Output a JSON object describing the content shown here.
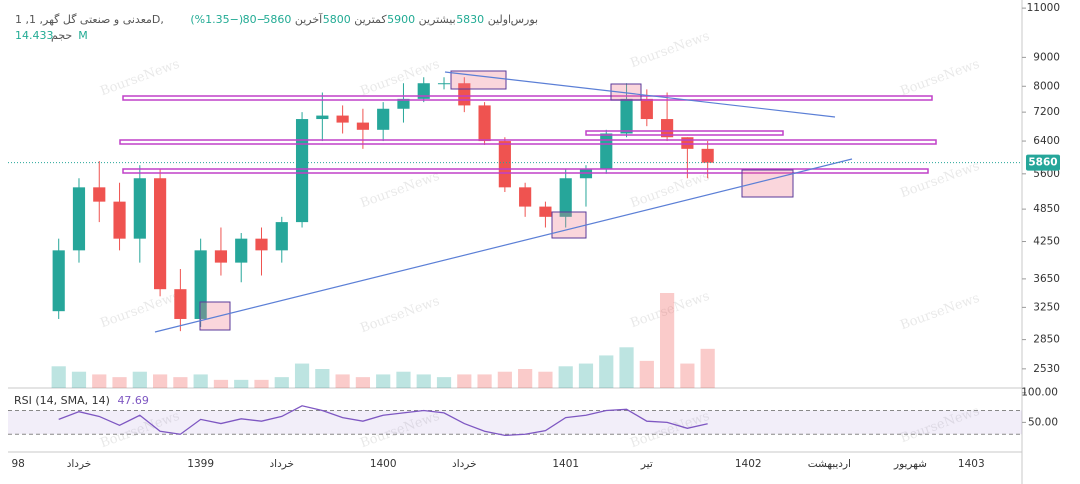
{
  "chart_data": {
    "type": "candlestick",
    "watermark": "BourseNews",
    "legend": {
      "name": "1 ,معدنی و صنعتی گل گهر, 1D, بورس",
      "open_label": "اولین",
      "open": 5830,
      "high_label": "بیشترین",
      "high": 5900,
      "low_label": "کمترین",
      "low": 5800,
      "close_label": "آخرین",
      "close": 5860,
      "change": {
        "value": -80,
        "label": "−80"
      },
      "change_pct": {
        "value": -1.35,
        "label": "(−1.35%)"
      },
      "volume_label": "حجم",
      "volume": {
        "value": 14.433,
        "label": "14.433M"
      }
    },
    "categories": [
      "98",
      null,
      null,
      "خرداد",
      null,
      null,
      null,
      null,
      null,
      "1399",
      null,
      null,
      null,
      "خرداد",
      null,
      null,
      null,
      null,
      "1400",
      null,
      null,
      null,
      "خرداد",
      null,
      null,
      null,
      null,
      "1401",
      null,
      null,
      null,
      "تیر",
      null,
      null,
      null,
      null,
      "1402",
      null,
      null,
      null,
      "اردیبهشت",
      null,
      null,
      null,
      "شهریور",
      null,
      null,
      "1403",
      null,
      null
    ],
    "open": [
      null,
      null,
      3200,
      4100,
      5300,
      5000,
      4300,
      5500,
      3500,
      3100,
      4100,
      3900,
      4300,
      4100,
      4600,
      7000,
      7100,
      6900,
      6700,
      7300,
      7600,
      8100,
      8100,
      7400,
      6400,
      5300,
      4900,
      4700,
      5500,
      5700,
      6600,
      7600,
      7000,
      6500,
      6200,
      null,
      null,
      null,
      null,
      null,
      null,
      null,
      null,
      null,
      null,
      null,
      null,
      null,
      null,
      null
    ],
    "high": [
      null,
      null,
      4300,
      5500,
      5900,
      5400,
      5800,
      5700,
      3800,
      4300,
      4500,
      4400,
      4500,
      4700,
      7200,
      7800,
      7400,
      7300,
      7500,
      8100,
      8300,
      8300,
      8300,
      7500,
      6500,
      5400,
      5000,
      5700,
      5800,
      6700,
      8100,
      7900,
      7800,
      6500,
      6400,
      null,
      null,
      null,
      null,
      null,
      null,
      null,
      null,
      null,
      null,
      null,
      null,
      null,
      null,
      null
    ],
    "low": [
      null,
      null,
      3100,
      3900,
      4600,
      4100,
      3900,
      3400,
      2950,
      3000,
      3700,
      3600,
      3700,
      3900,
      4500,
      6400,
      6600,
      6200,
      6400,
      6900,
      7500,
      7900,
      7200,
      6300,
      5200,
      4700,
      4500,
      4500,
      4900,
      5600,
      6500,
      6800,
      6400,
      5500,
      5500,
      null,
      null,
      null,
      null,
      null,
      null,
      null,
      null,
      null,
      null,
      null,
      null,
      null,
      null,
      null
    ],
    "close": [
      null,
      null,
      4100,
      5300,
      5000,
      4300,
      5500,
      3500,
      3100,
      4100,
      3900,
      4300,
      4100,
      4600,
      7000,
      7100,
      6900,
      6700,
      7300,
      7600,
      8100,
      8100,
      7400,
      6400,
      5300,
      4900,
      4700,
      5500,
      5700,
      6600,
      7600,
      7000,
      6500,
      6200,
      5860,
      null,
      null,
      null,
      null,
      null,
      null,
      null,
      null,
      null,
      null,
      null,
      null,
      null,
      null,
      null
    ],
    "volume": [
      null,
      null,
      8,
      6,
      5,
      4,
      6,
      5,
      4,
      5,
      3,
      3,
      3,
      4,
      9,
      7,
      5,
      4,
      5,
      6,
      5,
      4,
      5,
      5,
      6,
      7,
      6,
      8,
      9,
      12,
      15,
      10,
      35,
      9,
      14.433,
      null,
      null,
      null,
      null,
      null,
      null,
      null,
      null,
      null,
      null,
      null,
      null,
      null,
      null,
      null
    ],
    "up_color": "#26a69a",
    "down_color": "#ef5350",
    "log_scale": true,
    "ylim": [
      2340,
      11370
    ],
    "yticks": [
      11000,
      9000,
      8000,
      7200,
      6400,
      5600,
      4850,
      4250,
      3650,
      3250,
      2850,
      2530
    ],
    "grid": false,
    "rsi": {
      "label": "RSI (14, SMA, 14)",
      "color": "#7e57c2",
      "values": [
        null,
        null,
        55,
        68,
        60,
        45,
        62,
        35,
        30,
        55,
        48,
        56,
        52,
        60,
        78,
        70,
        58,
        52,
        62,
        66,
        70,
        66,
        48,
        35,
        28,
        30,
        36,
        58,
        62,
        70,
        72,
        52,
        50,
        40,
        47.69,
        null,
        null,
        null,
        null,
        null,
        null,
        null,
        null,
        null,
        null,
        null,
        null,
        null,
        null,
        null
      ],
      "band": [
        30,
        70
      ],
      "ylim": [
        0,
        108
      ],
      "yticks": [
        {
          "value": 100,
          "label": "100.00"
        },
        {
          "value": 50,
          "label": "50.00"
        }
      ]
    }
  }
}
